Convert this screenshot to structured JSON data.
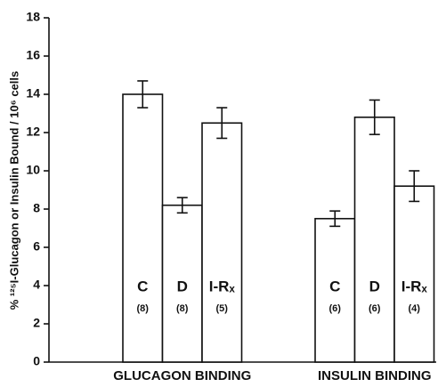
{
  "chart_data": {
    "type": "grouped-bar-errors",
    "y_label": "% ¹²⁵I-Glucagon or Insulin Bound / 10⁶ cells",
    "ylim": [
      0,
      18
    ],
    "yticks": [
      0,
      2,
      4,
      6,
      8,
      10,
      12,
      14,
      16,
      18
    ],
    "color": "#ffffff",
    "grid": false,
    "groups": [
      {
        "name": "GLUCAGON BINDING",
        "bars": [
          {
            "label": "C",
            "n_label": "(8)",
            "value": 14.0,
            "error": 0.7
          },
          {
            "label": "D",
            "n_label": "(8)",
            "value": 8.2,
            "error": 0.4
          },
          {
            "label": "I-Rₓ",
            "n_label": "(5)",
            "value": 12.5,
            "error": 0.8
          }
        ]
      },
      {
        "name": "INSULIN BINDING",
        "bars": [
          {
            "label": "C",
            "n_label": "(6)",
            "value": 7.5,
            "error": 0.4
          },
          {
            "label": "D",
            "n_label": "(6)",
            "value": 12.8,
            "error": 0.9
          },
          {
            "label": "I-Rₓ",
            "n_label": "(4)",
            "value": 9.2,
            "error": 0.8
          }
        ]
      }
    ]
  }
}
